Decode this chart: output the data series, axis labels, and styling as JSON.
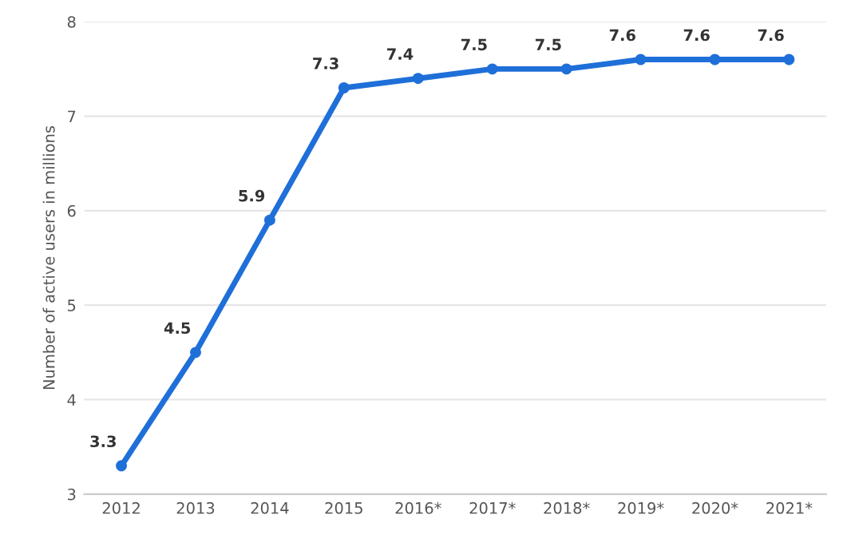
{
  "chart_data": {
    "type": "line",
    "ylabel": "Number of active users in millions",
    "categories": [
      "2012",
      "2013",
      "2014",
      "2015",
      "2016*",
      "2017*",
      "2018*",
      "2019*",
      "2020*",
      "2021*"
    ],
    "series": [
      {
        "color": "#1f6fd9",
        "values": [
          3.3,
          4.5,
          5.9,
          7.3,
          7.4,
          7.5,
          7.5,
          7.6,
          7.6,
          7.6
        ]
      }
    ],
    "ylim": [
      3,
      8
    ],
    "yticks": [
      3,
      4,
      5,
      6,
      7,
      8
    ],
    "grid": "y",
    "marker": "circle",
    "line_style": "solid",
    "data_labels": true
  }
}
